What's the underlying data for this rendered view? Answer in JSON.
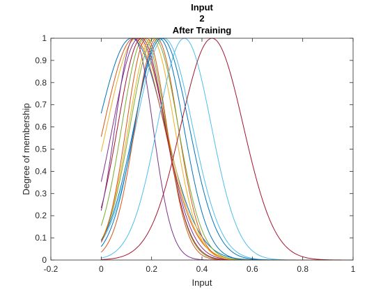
{
  "chart_data": {
    "type": "line",
    "title_lines": [
      "Input",
      "2",
      "After Training"
    ],
    "xlabel": "Input",
    "ylabel": "Degree of membership",
    "xlim": [
      -0.2,
      1
    ],
    "ylim": [
      0,
      1
    ],
    "xticks": [
      "-0.2",
      "0",
      "0.2",
      "0.4",
      "0.6",
      "0.8",
      "1"
    ],
    "yticks": [
      "0",
      "0.1",
      "0.2",
      "0.3",
      "0.4",
      "0.5",
      "0.6",
      "0.7",
      "0.8",
      "0.9",
      "1"
    ],
    "grid": false,
    "legend": false,
    "x_domain": [
      0,
      1
    ],
    "curve_kind": "gaussian",
    "series": [
      {
        "center": 0.12,
        "sigma": 0.132,
        "color": "#0072BD"
      },
      {
        "center": 0.13,
        "sigma": 0.12,
        "color": "#D95319"
      },
      {
        "center": 0.14,
        "sigma": 0.117,
        "color": "#EDB120"
      },
      {
        "center": 0.15,
        "sigma": 0.104,
        "color": "#7E2F8E"
      },
      {
        "center": 0.17,
        "sigma": 0.088,
        "color": "#77AC30"
      },
      {
        "center": 0.25,
        "sigma": 0.112,
        "color": "#4DBEEE"
      },
      {
        "center": 0.16,
        "sigma": 0.094,
        "color": "#A2142F"
      },
      {
        "center": 0.23,
        "sigma": 0.097,
        "color": "#0072BD"
      },
      {
        "center": 0.22,
        "sigma": 0.085,
        "color": "#D95319"
      },
      {
        "center": 0.2,
        "sigma": 0.091,
        "color": "#EDB120"
      },
      {
        "center": 0.13,
        "sigma": 0.075,
        "color": "#7E2F8E"
      },
      {
        "center": 0.21,
        "sigma": 0.095,
        "color": "#77AC30"
      },
      {
        "center": 0.33,
        "sigma": 0.107,
        "color": "#4DBEEE"
      },
      {
        "center": 0.44,
        "sigma": 0.124,
        "color": "#A2142F"
      },
      {
        "center": 0.24,
        "sigma": 0.109,
        "color": "#0072BD"
      },
      {
        "center": 0.18,
        "sigma": 0.08,
        "color": "#D95319"
      }
    ]
  }
}
